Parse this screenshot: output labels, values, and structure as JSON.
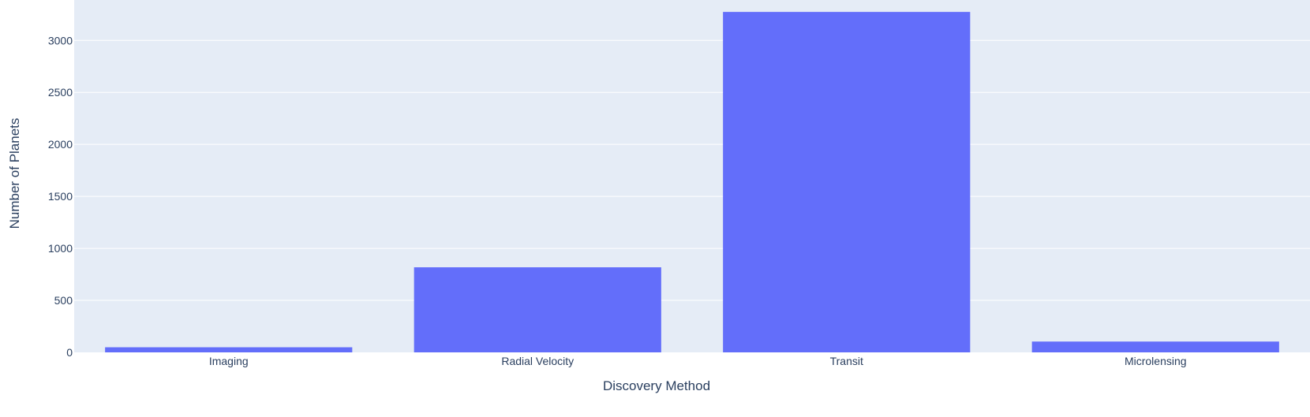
{
  "chart_data": {
    "type": "bar",
    "title": "",
    "xlabel": "Discovery Method",
    "ylabel": "Number of Planets",
    "categories": [
      "Imaging",
      "Radial Velocity",
      "Transit",
      "Microlensing"
    ],
    "values": [
      49,
      818,
      3274,
      104
    ],
    "ylim": [
      0,
      3275
    ],
    "yticks": [
      0,
      500,
      1000,
      1500,
      2000,
      2500,
      3000
    ],
    "grid": true,
    "legend": "none",
    "colors": {
      "bar": "#636efa",
      "plot_background": "#e5ecf6",
      "grid": "#ffffff",
      "text": "#2a3f5f"
    }
  }
}
